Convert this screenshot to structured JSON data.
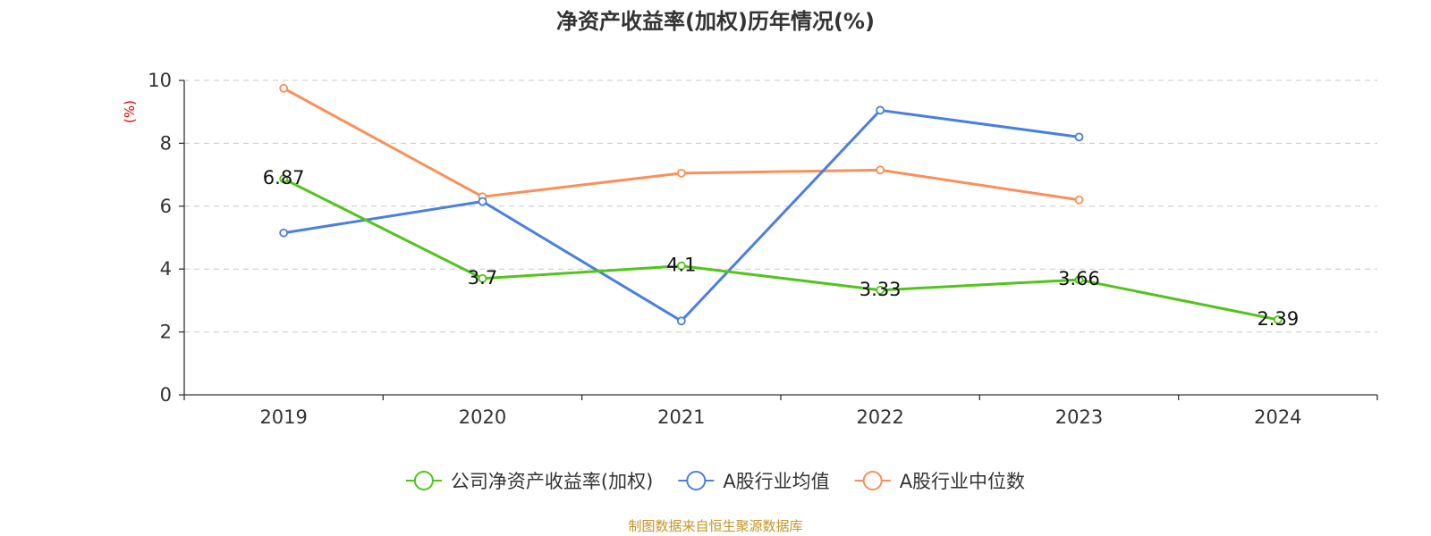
{
  "chart_data": {
    "type": "line",
    "title": "净资产收益率(加权)历年情况(%)",
    "ylabel": "(%)",
    "xlabel": "",
    "categories": [
      "2019",
      "2020",
      "2021",
      "2022",
      "2023",
      "2024"
    ],
    "ylim": [
      0,
      10
    ],
    "yticks": [
      0,
      2,
      4,
      6,
      8,
      10
    ],
    "grid": true,
    "legend_position": "bottom",
    "series": [
      {
        "name": "公司净资产收益率(加权)",
        "color": "#52c41a",
        "values": [
          6.87,
          3.7,
          4.1,
          3.33,
          3.66,
          2.39
        ],
        "labels": [
          "6.87",
          "3.7",
          "4.1",
          "3.33",
          "3.66",
          "2.39"
        ]
      },
      {
        "name": "A股行业均值",
        "color": "#4a7fe0",
        "values": [
          5.15,
          6.15,
          2.35,
          9.05,
          8.2,
          null
        ]
      },
      {
        "name": "A股行业中位数",
        "color": "#fb8f57",
        "values": [
          9.75,
          6.3,
          7.05,
          7.15,
          6.2,
          null
        ]
      }
    ],
    "source": "制图数据来自恒生聚源数据库"
  }
}
